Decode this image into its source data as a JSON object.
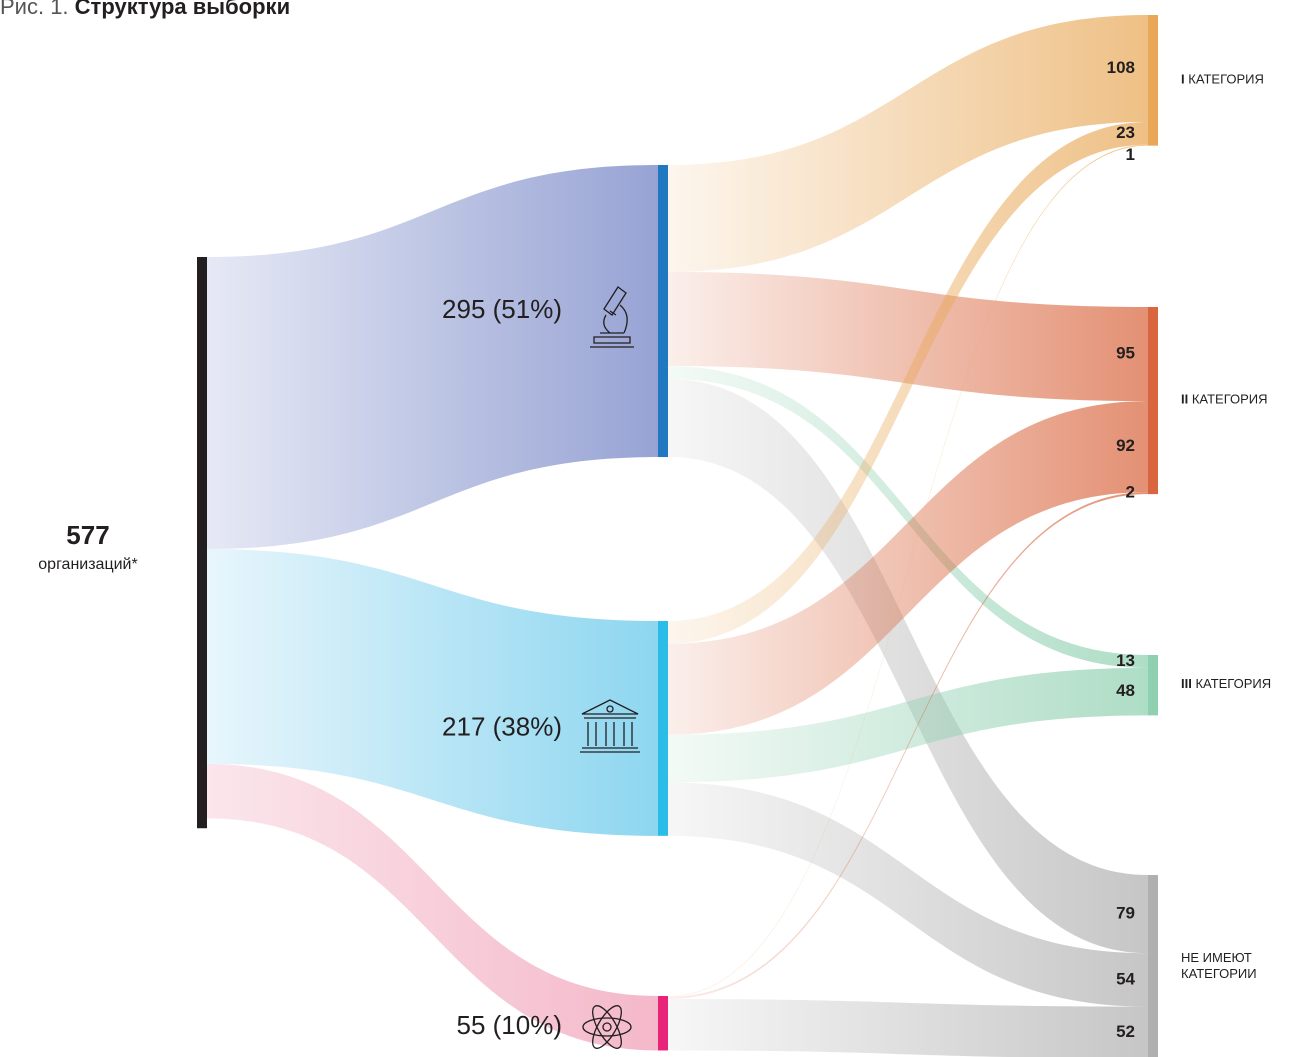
{
  "chart_data": {
    "type": "sankey",
    "title": {
      "prefix": "Рис. 1.",
      "main": "Структура выборки"
    },
    "source": {
      "value": 577,
      "label": "организаций*",
      "color": "#231f20"
    },
    "nodes": {
      "values": [
        295,
        217,
        55
      ],
      "value_labels": [
        "295 (51%)",
        "217 (38%)",
        "55 (10%)"
      ],
      "colors": [
        "#1f78c0",
        "#2bbde8",
        "#e8247a"
      ],
      "flow_colors": [
        [
          "#e6e9f5",
          "#97a3d4"
        ],
        [
          "#e8f6fc",
          "#8dd6f0"
        ],
        [
          "#fbe6ec",
          "#f4b8c9"
        ]
      ]
    },
    "targets": [
      {
        "num": "I",
        "text": "КАТЕГОРИЯ",
        "color": "#e8a857"
      },
      {
        "num": "II",
        "text": "КАТЕГОРИЯ",
        "color": "#d9663e"
      },
      {
        "num": "III",
        "text": "КАТЕГОРИЯ",
        "color": "#8fd0b0"
      },
      {
        "lines": [
          "НЕ ИМЕЮТ",
          "КАТЕГОРИИ"
        ],
        "color": "#b0b0b0"
      }
    ],
    "flows": [
      [
        108,
        95,
        13,
        79
      ],
      [
        23,
        92,
        48,
        54
      ],
      [
        1,
        2,
        null,
        52
      ]
    ]
  }
}
